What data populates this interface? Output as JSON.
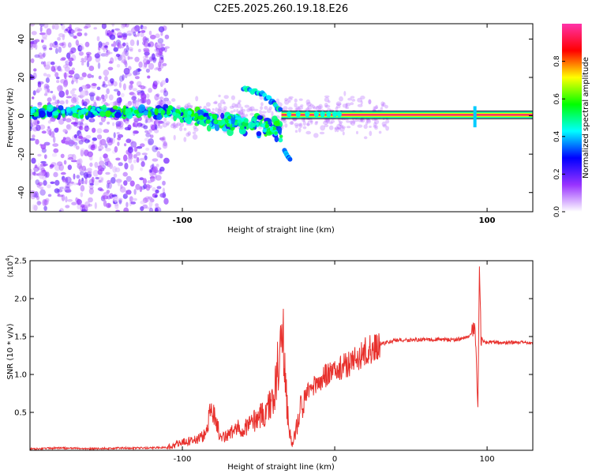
{
  "title": "C2E5.2025.260.19.18.E26",
  "chart_data": [
    {
      "type": "heatmap",
      "name": "spectrogram",
      "xlabel": "Height of straight line (km)",
      "ylabel": "Frequency (Hz)",
      "xlim": [
        -200,
        130
      ],
      "ylim": [
        -50,
        48
      ],
      "xticks": [
        -100,
        0,
        100
      ],
      "xtick_labels": [
        "-100",
        "",
        "100"
      ],
      "yticks": [
        -40,
        -20,
        0,
        20,
        40
      ],
      "ytick_labels": [
        "-40",
        "-20",
        "0",
        "20",
        "40"
      ],
      "carrier_line": {
        "x_start": -35,
        "x_end": 130,
        "frequency": 0.5,
        "amplitude": 0.95
      },
      "features": [
        {
          "label": "noise",
          "x_range": [
            -200,
            -110
          ],
          "freq_range": [
            -50,
            48
          ],
          "amplitude": 0.12
        },
        {
          "label": "scattered-band",
          "x_range": [
            -120,
            -35
          ],
          "freq_center": 0,
          "amplitude": 0.4
        },
        {
          "label": "upper-branch",
          "x": [
            -60,
            -50,
            -42,
            -35
          ],
          "freq": [
            14,
            12,
            8,
            2
          ]
        },
        {
          "label": "lower-branch",
          "x": [
            -33,
            -31,
            -29
          ],
          "freq": [
            -18,
            -21,
            -23
          ]
        },
        {
          "label": "spike",
          "x": 92,
          "freq_range": [
            -6,
            5
          ]
        }
      ],
      "colorbar": {
        "label": "Normalized spectral amplitude",
        "range": [
          0,
          1
        ],
        "ticks": [
          0.0,
          0.2,
          0.4,
          0.6,
          0.8
        ],
        "tick_labels": [
          "0.0",
          "0.2",
          "0.4",
          "0.6",
          "0.8"
        ],
        "colors": [
          "#ffffff",
          "#9933ff",
          "#0000ff",
          "#00ffff",
          "#00ff00",
          "#ffff00",
          "#ff0000",
          "#ff33aa"
        ]
      }
    },
    {
      "type": "line",
      "name": "snr",
      "xlabel": "Height of straight line (km)",
      "ylabel": "SNR (10 * v/v)",
      "y_multiplier": "(x10",
      "y_multiplier_exp": "4",
      "y_multiplier_close": ")",
      "xlim": [
        -200,
        130
      ],
      "ylim": [
        0,
        2.5
      ],
      "xticks": [
        -100,
        0,
        100
      ],
      "xtick_labels": [
        "-100",
        "0",
        "100"
      ],
      "yticks": [
        0.5,
        1.0,
        1.5,
        2.0,
        2.5
      ],
      "ytick_labels": [
        "0.5",
        "1.0",
        "1.5",
        "2.0",
        "2.5"
      ],
      "color": "#e8302c",
      "series": [
        {
          "name": "SNR",
          "x": [
            -200,
            -180,
            -160,
            -140,
            -120,
            -110,
            -100,
            -90,
            -85,
            -80,
            -75,
            -70,
            -65,
            -60,
            -55,
            -50,
            -45,
            -40,
            -38,
            -36,
            -34,
            -32,
            -30,
            -28,
            -25,
            -22,
            -20,
            -15,
            -10,
            -5,
            0,
            10,
            20,
            30,
            40,
            60,
            80,
            88,
            92,
            94,
            95,
            96,
            98,
            100,
            110,
            120,
            130
          ],
          "values": [
            0.02,
            0.03,
            0.02,
            0.03,
            0.03,
            0.04,
            0.1,
            0.15,
            0.2,
            0.6,
            0.15,
            0.2,
            0.28,
            0.3,
            0.35,
            0.45,
            0.5,
            0.7,
            1.0,
            1.3,
            1.55,
            0.8,
            0.3,
            0.05,
            0.3,
            0.6,
            0.7,
            0.85,
            0.9,
            1.0,
            1.05,
            1.15,
            1.3,
            1.4,
            1.45,
            1.46,
            1.46,
            1.5,
            1.6,
            0.55,
            2.5,
            1.45,
            1.43,
            1.43,
            1.42,
            1.42,
            1.42
          ]
        }
      ]
    }
  ]
}
